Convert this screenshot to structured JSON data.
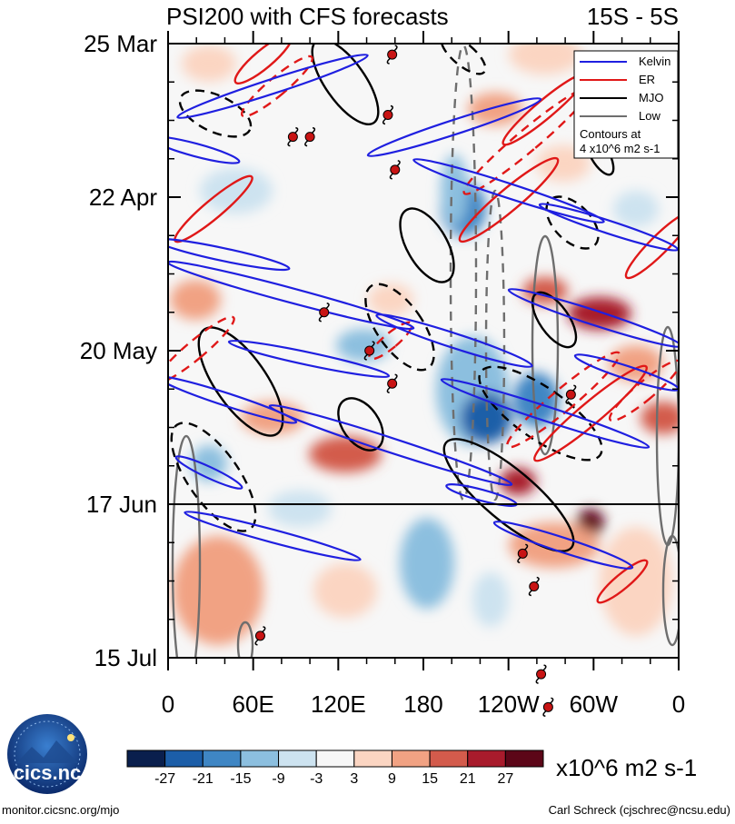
{
  "chart_data": {
    "type": "heatmap",
    "title": "PSI200 with CFS forecasts",
    "region_label": "15S - 5S",
    "y_ticks": [
      "25 Mar",
      "22 Apr",
      "20 May",
      "17 Jun",
      "15 Jul"
    ],
    "x_ticks": [
      "0",
      "60E",
      "120E",
      "180",
      "120W",
      "60W",
      "0"
    ],
    "forecast_start": "17 Jun",
    "legend": {
      "entries": [
        {
          "name": "Kelvin",
          "color": "#1f1fe0"
        },
        {
          "name": "ER",
          "color": "#e01818"
        },
        {
          "name": "MJO",
          "color": "#000000"
        },
        {
          "name": "Low",
          "color": "#6e6e6e"
        }
      ],
      "note_line1": "Contours at",
      "note_line2": "4 x10^6 m2 s-1"
    },
    "colorbar": {
      "levels": [
        "-27",
        "-21",
        "-15",
        "-9",
        "-3",
        "3",
        "9",
        "15",
        "21",
        "27"
      ],
      "colors": [
        "#0a1f4d",
        "#1c5ea8",
        "#3f86c4",
        "#8cbfdf",
        "#cde3f0",
        "#f7f7f7",
        "#fbd5c2",
        "#f1a283",
        "#d35b4c",
        "#a81b2c",
        "#5c0618"
      ],
      "units": "x10^6 m2 s-1"
    },
    "storm_symbols": [
      {
        "lon": 158,
        "day": 2
      },
      {
        "lon": 155,
        "day": 13
      },
      {
        "lon": 88,
        "day": 17
      },
      {
        "lon": 100,
        "day": 17
      },
      {
        "lon": 160,
        "day": 23
      },
      {
        "lon": 110,
        "day": 49
      },
      {
        "lon": 142,
        "day": 56
      },
      {
        "lon": 158,
        "day": 62
      },
      {
        "lon": 284,
        "day": 64
      },
      {
        "lon": 250,
        "day": 93
      },
      {
        "lon": 258,
        "day": 99
      },
      {
        "lon": 65,
        "day": 108
      },
      {
        "lon": 263,
        "day": 115
      },
      {
        "lon": 268,
        "day": 121
      }
    ]
  },
  "logo": {
    "text": "cics.nc"
  },
  "footer": {
    "left": "monitor.cicsnc.org/mjo",
    "right": "Carl Schreck (cjschrec@ncsu.edu)"
  }
}
